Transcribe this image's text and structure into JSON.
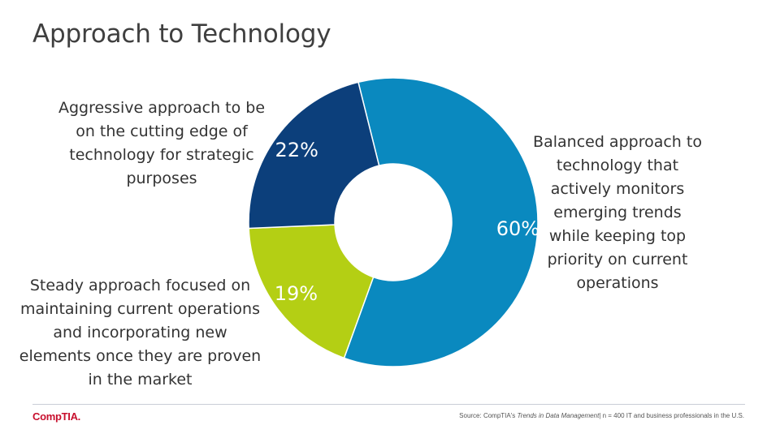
{
  "slide": {
    "title": "Approach to Technology"
  },
  "chart_data": {
    "type": "pie",
    "variant": "donut",
    "categories": [
      "Balanced approach to technology that actively monitors emerging trends while keeping top priority on current operations",
      "Steady approach focused on maintaining current operations and incorporating new elements once they are proven in the market",
      "Aggressive approach to be on the cutting edge of technology for strategic purposes"
    ],
    "values": [
      60,
      19,
      22
    ],
    "value_labels": [
      "60%",
      "19%",
      "22%"
    ],
    "colors": [
      "#0a89bf",
      "#b4cf14",
      "#0c3f7b"
    ],
    "label_color": "#ffffff"
  },
  "callouts": {
    "aggressive": "Aggressive approach to be on the cutting edge of technology for strategic purposes",
    "balanced": "Balanced approach to technology that actively monitors emerging trends while keeping top priority on current operations",
    "steady": "Steady approach focused on maintaining current operations and incorporating new elements once they are proven in the market"
  },
  "footer": {
    "logo": "CompTIA.",
    "source_prefix": "Source: CompTIA's",
    "source_title": "Trends in Data Management",
    "source_suffix": "| n = 400 IT and business professionals in the U.S."
  }
}
